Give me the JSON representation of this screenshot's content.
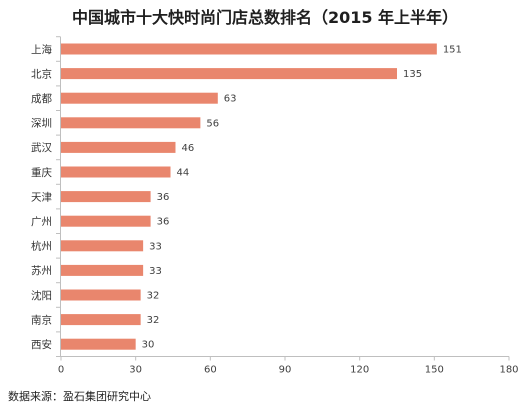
{
  "chart_data": {
    "type": "bar",
    "orientation": "horizontal",
    "title": "中国城市十大快时尚门店总数排名（2015 年上半年）",
    "categories": [
      "上海",
      "北京",
      "成都",
      "深圳",
      "武汉",
      "重庆",
      "天津",
      "广州",
      "杭州",
      "苏州",
      "沈阳",
      "南京",
      "西安"
    ],
    "values": [
      151,
      135,
      63,
      56,
      46,
      44,
      36,
      36,
      33,
      33,
      32,
      32,
      30
    ],
    "xlim": [
      0,
      180
    ],
    "xticks": [
      0,
      30,
      60,
      90,
      120,
      150,
      180
    ],
    "grid": false,
    "data_labels": true,
    "bar_color": "#E9866D",
    "axis_color": "#BFBFBF"
  },
  "source": "数据来源：盈石集团研究中心"
}
